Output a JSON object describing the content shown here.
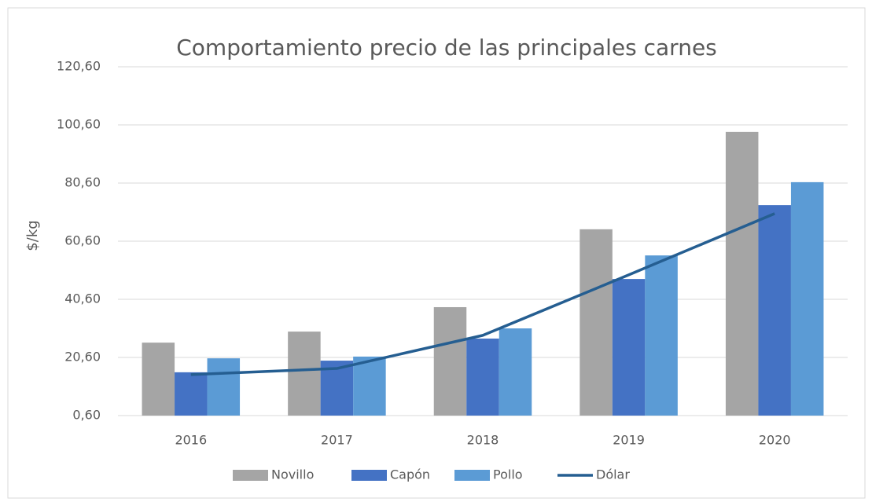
{
  "chart_data": {
    "type": "bar",
    "title": "Comportamiento precio de las principales carnes",
    "y_label": "$/kg",
    "categories": [
      "2016",
      "2017",
      "2018",
      "2019",
      "2020"
    ],
    "series": [
      {
        "name": "Novillo",
        "type": "bar",
        "color": "#a5a5a5",
        "values": [
          25.7,
          29.5,
          37.9,
          64.7,
          98.2
        ]
      },
      {
        "name": "Capón",
        "type": "bar",
        "color": "#4472c4",
        "values": [
          15.5,
          19.5,
          27.1,
          47.6,
          73.0
        ]
      },
      {
        "name": "Pollo",
        "type": "bar",
        "color": "#5b9bd5",
        "values": [
          20.3,
          20.9,
          30.6,
          55.7,
          80.9
        ]
      },
      {
        "name": "Dólar",
        "type": "line",
        "color": "#255e91",
        "values": [
          14.7,
          16.8,
          28.2,
          49.0,
          70.1
        ]
      }
    ],
    "ylim": [
      0.6,
      120.6
    ],
    "yticks": [
      {
        "value": 0.6,
        "label": "0,60"
      },
      {
        "value": 20.6,
        "label": "20,60"
      },
      {
        "value": 40.6,
        "label": "40,60"
      },
      {
        "value": 60.6,
        "label": "60,60"
      },
      {
        "value": 80.6,
        "label": "80,60"
      },
      {
        "value": 100.6,
        "label": "100,60"
      },
      {
        "value": 120.6,
        "label": "120,60"
      }
    ],
    "grid": true,
    "legend": "bottom"
  }
}
